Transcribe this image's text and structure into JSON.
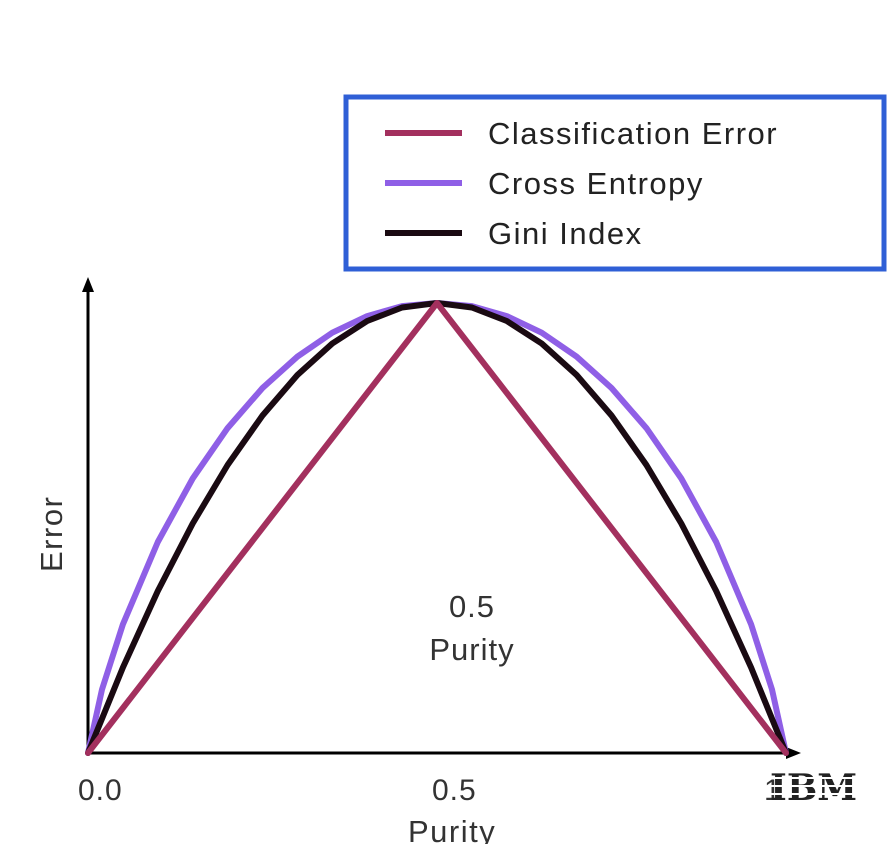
{
  "chart_data": {
    "type": "line",
    "title": "",
    "xlabel": "Purity",
    "ylabel": "Error",
    "xlim": [
      0,
      1
    ],
    "ylim": [
      0,
      1
    ],
    "x_ticks": [
      "0.0",
      "0.5",
      "1"
    ],
    "grid": false,
    "legend_position": "top-right",
    "annotation": {
      "value": "0.5",
      "label": "Purity"
    },
    "series": [
      {
        "name": "Classification Error",
        "color": "#a3305e",
        "x": [
          0,
          0.5,
          1
        ],
        "y": [
          0,
          1,
          0
        ]
      },
      {
        "name": "Cross Entropy",
        "color": "#8f5fe6",
        "x": [
          0,
          0.02,
          0.05,
          0.1,
          0.15,
          0.2,
          0.25,
          0.3,
          0.35,
          0.4,
          0.45,
          0.5,
          0.55,
          0.6,
          0.65,
          0.7,
          0.75,
          0.8,
          0.85,
          0.9,
          0.95,
          0.98,
          1
        ],
        "y": [
          0,
          0.141,
          0.286,
          0.469,
          0.61,
          0.722,
          0.811,
          0.881,
          0.934,
          0.971,
          0.993,
          1,
          0.993,
          0.971,
          0.934,
          0.881,
          0.811,
          0.722,
          0.61,
          0.469,
          0.286,
          0.141,
          0
        ]
      },
      {
        "name": "Gini Index",
        "color": "#1a0a12",
        "x": [
          0,
          0.05,
          0.1,
          0.15,
          0.2,
          0.25,
          0.3,
          0.35,
          0.4,
          0.45,
          0.5,
          0.55,
          0.6,
          0.65,
          0.7,
          0.75,
          0.8,
          0.85,
          0.9,
          0.95,
          1
        ],
        "y": [
          0,
          0.19,
          0.36,
          0.51,
          0.64,
          0.75,
          0.84,
          0.91,
          0.96,
          0.99,
          1,
          0.99,
          0.96,
          0.91,
          0.84,
          0.75,
          0.64,
          0.51,
          0.36,
          0.19,
          0
        ]
      }
    ]
  },
  "logo": {
    "text": "IBM"
  }
}
